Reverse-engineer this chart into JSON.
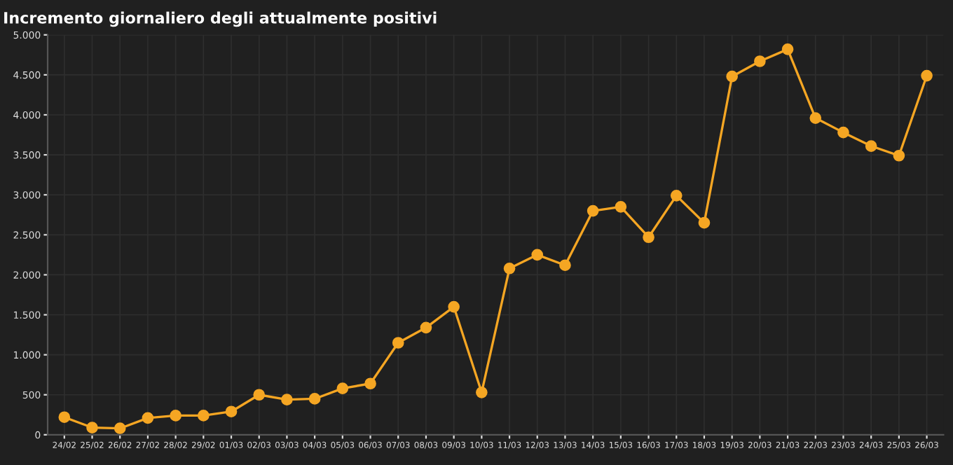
{
  "chart_data": {
    "type": "line",
    "title": "Incremento giornaliero degli attualmente positivi",
    "categories": [
      "24/02",
      "25/02",
      "26/02",
      "27/02",
      "28/02",
      "29/02",
      "01/03",
      "02/03",
      "03/03",
      "04/03",
      "05/03",
      "06/03",
      "07/03",
      "08/03",
      "09/03",
      "10/03",
      "11/03",
      "12/03",
      "13/03",
      "14/03",
      "15/03",
      "16/03",
      "17/03",
      "18/03",
      "19/03",
      "20/03",
      "21/03",
      "22/03",
      "23/03",
      "24/03",
      "25/03",
      "26/03"
    ],
    "series": [
      {
        "color": "#f5a623",
        "values": [
          220,
          90,
          80,
          210,
          240,
          240,
          290,
          500,
          440,
          450,
          580,
          640,
          1150,
          1340,
          1600,
          530,
          2080,
          2250,
          2120,
          2800,
          2850,
          2470,
          2990,
          2650,
          4480,
          4670,
          4820,
          3960,
          3780,
          3610,
          3490,
          4490
        ]
      }
    ],
    "ylim": [
      0,
      5000
    ],
    "yticks": [
      {
        "value": 0,
        "label": "0"
      },
      {
        "value": 500,
        "label": "500"
      },
      {
        "value": 1000,
        "label": "1.000"
      },
      {
        "value": 1500,
        "label": "1.500"
      },
      {
        "value": 2000,
        "label": "2.000"
      },
      {
        "value": 2500,
        "label": "2.500"
      },
      {
        "value": 3000,
        "label": "3.000"
      },
      {
        "value": 3500,
        "label": "3.500"
      },
      {
        "value": 4000,
        "label": "4.000"
      },
      {
        "value": 4500,
        "label": "4.500"
      },
      {
        "value": 5000,
        "label": "5.000"
      }
    ],
    "grid": true,
    "marker": "circle",
    "line_style": "solid"
  }
}
